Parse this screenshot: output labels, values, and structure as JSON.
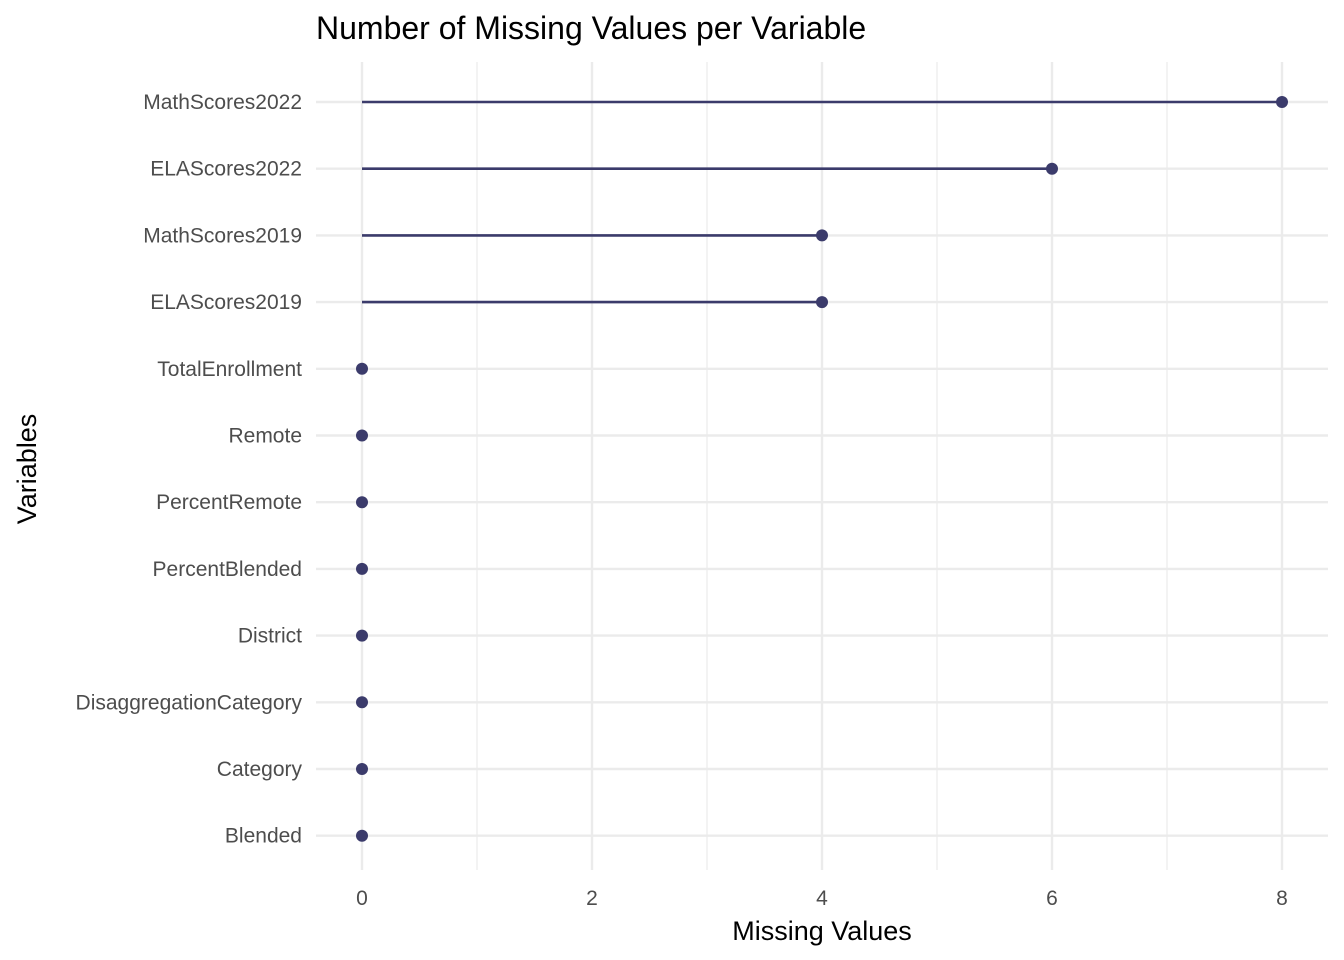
{
  "chart_data": {
    "type": "lollipop",
    "title": "Number of Missing Values per Variable",
    "xlabel": "Missing Values",
    "ylabel": "Variables",
    "categories": [
      "MathScores2022",
      "ELAScores2022",
      "MathScores2019",
      "ELAScores2019",
      "TotalEnrollment",
      "Remote",
      "PercentRemote",
      "PercentBlended",
      "District",
      "DisaggregationCategory",
      "Category",
      "Blended"
    ],
    "values": [
      8,
      6,
      4,
      4,
      0,
      0,
      0,
      0,
      0,
      0,
      0,
      0
    ],
    "xlim": [
      -0.4,
      8.4
    ],
    "xticks": [
      "0",
      "2",
      "4",
      "6",
      "8"
    ],
    "grid": true,
    "legend": "none",
    "color": "#3b3b6b"
  }
}
